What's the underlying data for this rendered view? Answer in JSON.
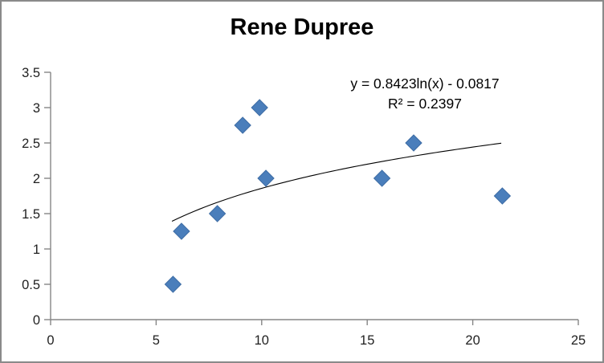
{
  "frame": {
    "border_color": "#8a8a8a",
    "background_color": "#ffffff"
  },
  "chart_data": {
    "type": "scatter",
    "title": "Rene Dupree",
    "xlabel": "",
    "ylabel": "",
    "xlim": [
      0,
      25
    ],
    "ylim": [
      0,
      3.5
    ],
    "x_ticks": [
      0,
      5,
      10,
      15,
      20,
      25
    ],
    "y_ticks": [
      0,
      0.5,
      1,
      1.5,
      2,
      2.5,
      3,
      3.5
    ],
    "grid": false,
    "legend": false,
    "axis_color": "#868686",
    "tick_label_color": "#1f1f1f",
    "marker": {
      "shape": "diamond",
      "color": "#4A7EBB",
      "border_color": "#3E6DA5"
    },
    "points": [
      {
        "x": 5.8,
        "y": 0.5
      },
      {
        "x": 6.2,
        "y": 1.25
      },
      {
        "x": 7.9,
        "y": 1.5
      },
      {
        "x": 9.1,
        "y": 2.75
      },
      {
        "x": 9.9,
        "y": 3.0
      },
      {
        "x": 10.2,
        "y": 2.0
      },
      {
        "x": 15.7,
        "y": 2.0
      },
      {
        "x": 17.2,
        "y": 2.5
      },
      {
        "x": 21.4,
        "y": 1.75
      }
    ],
    "trendline": {
      "kind": "logarithmic",
      "equation": "y = 0.8423ln(x) - 0.0817",
      "r_squared_label": "R² = 0.2397",
      "coef_a": 0.8423,
      "coef_b": -0.0817,
      "x_start": 5.75,
      "x_end": 21.35,
      "color": "#000000"
    }
  }
}
